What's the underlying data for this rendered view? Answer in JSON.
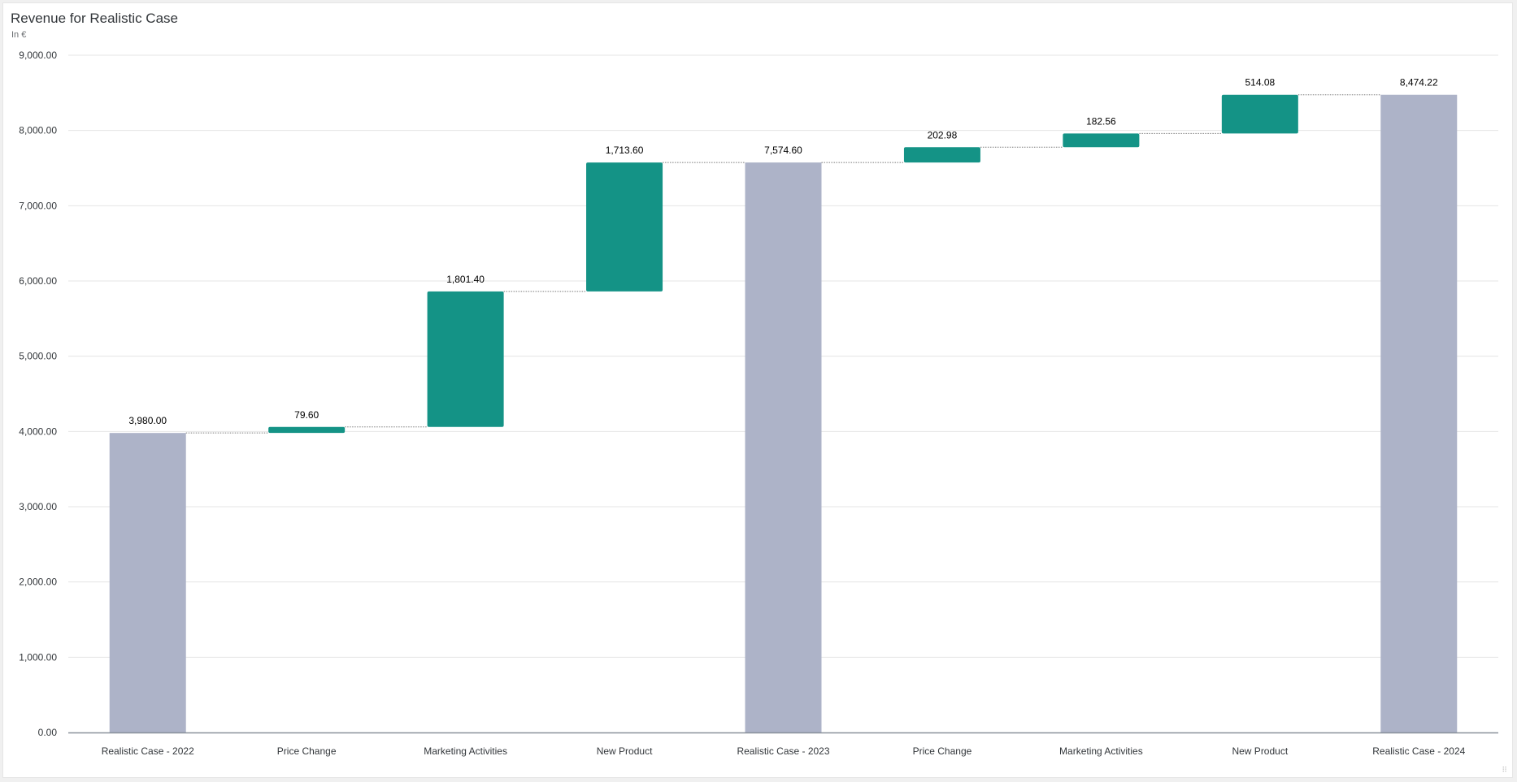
{
  "chart_data": {
    "type": "bar",
    "subtype": "waterfall",
    "title": "Revenue for Realistic Case",
    "subtitle": "In €",
    "categories": [
      "Realistic Case - 2022",
      "Price Change",
      "Marketing Activities",
      "New Product",
      "Realistic Case - 2023",
      "Price Change",
      "Marketing Activities",
      "New Product",
      "Realistic Case - 2024"
    ],
    "values": [
      3980.0,
      79.6,
      1801.4,
      1713.6,
      7574.6,
      202.98,
      182.56,
      514.08,
      8474.22
    ],
    "bar_kind": [
      "total",
      "delta",
      "delta",
      "delta",
      "total",
      "delta",
      "delta",
      "delta",
      "total"
    ],
    "data_labels": [
      "3,980.00",
      "79.60",
      "1,801.40",
      "1,713.60",
      "7,574.60",
      "202.98",
      "182.56",
      "514.08",
      "8,474.22"
    ],
    "yticks": [
      "0.00",
      "1,000.00",
      "2,000.00",
      "3,000.00",
      "4,000.00",
      "5,000.00",
      "6,000.00",
      "7,000.00",
      "8,000.00",
      "9,000.00"
    ],
    "ylim": [
      0,
      9000
    ],
    "xlabel": "",
    "ylabel": "",
    "grid": true,
    "legend": "none",
    "colors": {
      "total": "#adb3c8",
      "delta": "#149386",
      "grid": "#e5e5e5",
      "axis": "#89919a",
      "connector": "#7a7a7a",
      "label": "#000000"
    }
  }
}
